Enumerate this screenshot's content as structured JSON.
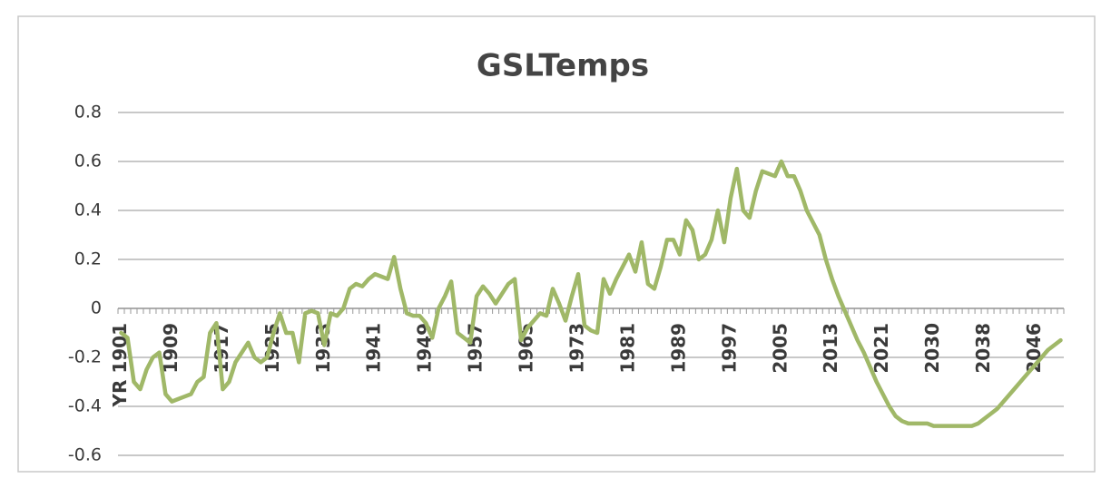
{
  "chart_data": {
    "type": "line",
    "title": "GSLTemps",
    "categories": [
      "YR 1901",
      null,
      null,
      null,
      null,
      null,
      null,
      null,
      "1909",
      null,
      null,
      null,
      null,
      null,
      null,
      null,
      "1917",
      null,
      null,
      null,
      null,
      null,
      null,
      null,
      "1925",
      null,
      null,
      null,
      null,
      null,
      null,
      null,
      "1933",
      null,
      null,
      null,
      null,
      null,
      null,
      null,
      "1941",
      null,
      null,
      null,
      null,
      null,
      null,
      null,
      "1949",
      null,
      null,
      null,
      null,
      null,
      null,
      null,
      "1957",
      null,
      null,
      null,
      null,
      null,
      null,
      null,
      "1965",
      null,
      null,
      null,
      null,
      null,
      null,
      null,
      "1973",
      null,
      null,
      null,
      null,
      null,
      null,
      null,
      "1981",
      null,
      null,
      null,
      null,
      null,
      null,
      null,
      "1989",
      null,
      null,
      null,
      null,
      null,
      null,
      null,
      "1997",
      null,
      null,
      null,
      null,
      null,
      null,
      null,
      "2005",
      null,
      null,
      null,
      null,
      null,
      null,
      null,
      "2013",
      null,
      null,
      null,
      null,
      null,
      null,
      null,
      "2021",
      null,
      null,
      null,
      null,
      null,
      null,
      null,
      "2030",
      null,
      null,
      null,
      null,
      null,
      null,
      null,
      "2038",
      null,
      null,
      null,
      null,
      null,
      null,
      null,
      "2046",
      null,
      null,
      null,
      null
    ],
    "values": [
      -0.1,
      -0.12,
      -0.3,
      -0.33,
      -0.25,
      -0.2,
      -0.18,
      -0.35,
      -0.38,
      -0.37,
      -0.36,
      -0.35,
      -0.3,
      -0.28,
      -0.1,
      -0.06,
      -0.33,
      -0.3,
      -0.22,
      -0.18,
      -0.14,
      -0.2,
      -0.22,
      -0.2,
      -0.1,
      -0.02,
      -0.1,
      -0.1,
      -0.22,
      -0.02,
      -0.01,
      -0.02,
      -0.15,
      -0.02,
      -0.03,
      0.0,
      0.08,
      0.1,
      0.09,
      0.12,
      0.14,
      0.13,
      0.12,
      0.21,
      0.08,
      -0.02,
      -0.03,
      -0.03,
      -0.06,
      -0.12,
      0.0,
      0.05,
      0.11,
      -0.1,
      -0.12,
      -0.14,
      0.05,
      0.09,
      0.06,
      0.02,
      0.06,
      0.1,
      0.12,
      -0.13,
      -0.08,
      -0.05,
      -0.02,
      -0.03,
      0.08,
      0.02,
      -0.05,
      0.05,
      0.14,
      -0.07,
      -0.09,
      -0.1,
      0.12,
      0.06,
      0.12,
      0.17,
      0.22,
      0.15,
      0.27,
      0.1,
      0.08,
      0.17,
      0.28,
      0.28,
      0.22,
      0.36,
      0.32,
      0.2,
      0.22,
      0.28,
      0.4,
      0.27,
      0.45,
      0.57,
      0.4,
      0.37,
      0.48,
      0.56,
      0.55,
      0.54,
      0.6,
      0.54,
      0.54,
      0.48,
      0.4,
      0.35,
      0.3,
      0.2,
      0.12,
      0.05,
      -0.01,
      -0.07,
      -0.13,
      -0.18,
      -0.24,
      -0.3,
      -0.35,
      -0.4,
      -0.44,
      -0.46,
      -0.47,
      -0.47,
      -0.47,
      -0.47,
      -0.48,
      -0.48,
      -0.48,
      -0.48,
      -0.48,
      -0.48,
      -0.48,
      -0.47,
      -0.45,
      -0.43,
      -0.41,
      -0.38,
      -0.35,
      -0.32,
      -0.29,
      -0.26,
      -0.23,
      -0.2,
      -0.17,
      -0.15,
      -0.13
    ],
    "color": "#a0b868",
    "ylim": [
      -0.6,
      0.8
    ],
    "yticks": [
      -0.6,
      -0.4,
      -0.2,
      0,
      0.2,
      0.4,
      0.6,
      0.8
    ],
    "grid": true
  }
}
